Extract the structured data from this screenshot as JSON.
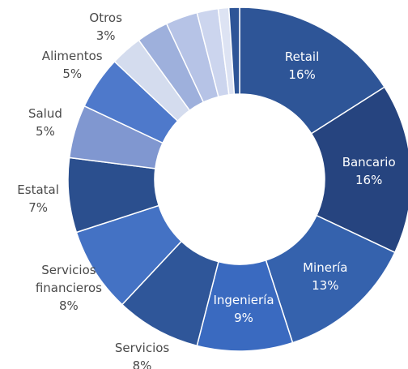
{
  "chart_data": {
    "type": "donut",
    "categories": [
      "Retail",
      "Bancario",
      "Minería",
      "Ingeniería",
      "Servicios",
      "Servicios financieros",
      "Estatal",
      "Salud",
      "Alimentos",
      "Otros",
      null,
      null,
      null,
      null,
      null
    ],
    "values": [
      16,
      16,
      13,
      9,
      8,
      8,
      7,
      5,
      5,
      3,
      3,
      3,
      2,
      1,
      1
    ],
    "value_labels": [
      "16%",
      "16%",
      "13%",
      "9%",
      "8%",
      "8%",
      "7%",
      "5%",
      "5%",
      "3%",
      null,
      null,
      null,
      null,
      null
    ],
    "colors": [
      "#2e5597",
      "#26447f",
      "#3562ad",
      "#3a6ac0",
      "#2f5699",
      "#4472c4",
      "#2b4f8e",
      "#8097d0",
      "#4e79cb",
      "#d4dcee",
      "#9eb0dc",
      "#b6c3e6",
      "#ccd5ee",
      "#dde3f3",
      "#2e5597"
    ]
  }
}
